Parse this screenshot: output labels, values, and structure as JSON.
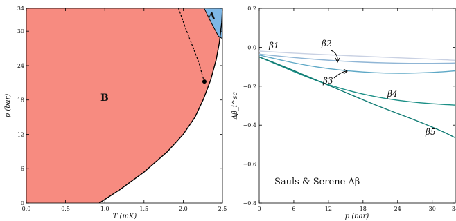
{
  "colors": {
    "phase_A": "#7eb7e6",
    "phase_B": "#f78b80",
    "beta1": "#c9d1e3",
    "beta2": "#8fb5d5",
    "beta3": "#5ea8c6",
    "beta4": "#1b8f86",
    "beta5": "#0e7a72"
  },
  "chart_data": [
    {
      "type": "area",
      "xlabel": "T (mK)",
      "ylabel": "p (bar)",
      "xlim": [
        0.0,
        2.5
      ],
      "ylim": [
        0,
        34
      ],
      "xticks": [
        "0.0",
        "0.5",
        "1.0",
        "1.5",
        "2.0",
        "2.5"
      ],
      "yticks": [
        "0",
        "6",
        "12",
        "18",
        "24",
        "30",
        "34"
      ],
      "regions": [
        {
          "label": "A",
          "color": "#7eb7e6"
        },
        {
          "label": "B",
          "color": "#f78b80"
        }
      ],
      "boundary_Tc": {
        "x": [
          0.93,
          1.2,
          1.5,
          1.8,
          2.0,
          2.15,
          2.26,
          2.35,
          2.42,
          2.46,
          2.49,
          2.5
        ],
        "y": [
          0,
          2.4,
          5.4,
          9.0,
          12.0,
          15.0,
          18.2,
          21.5,
          25.0,
          28.0,
          31.5,
          34
        ]
      },
      "boundary_AB": {
        "x": [
          2.27,
          2.36,
          2.45,
          2.5
        ],
        "y": [
          33.9,
          31.4,
          29.1,
          28.7
        ]
      },
      "metastable_dashed": {
        "x": [
          1.94,
          2.03,
          2.13,
          2.2,
          2.25,
          2.27
        ],
        "y": [
          34,
          30.5,
          27.0,
          24.5,
          22.0,
          21.2
        ]
      },
      "pcp_point": {
        "x": 2.27,
        "y": 21.2
      }
    },
    {
      "type": "line",
      "xlabel": "p (bar)",
      "ylabel": "Δβ_i^sc",
      "xlim": [
        0,
        34
      ],
      "ylim": [
        -0.8,
        0.2
      ],
      "xticks": [
        "0",
        "6",
        "12",
        "18",
        "24",
        "30",
        "34"
      ],
      "yticks": [
        "−0.8",
        "−0.6",
        "−0.4",
        "−0.2",
        "0.0",
        "0.2"
      ],
      "annotation": "Sauls & Serene Δβ",
      "x": [
        0,
        4,
        8,
        12,
        16,
        20,
        24,
        28,
        32,
        34
      ],
      "series": [
        {
          "name": "β1",
          "values": [
            -0.02,
            -0.027,
            -0.033,
            -0.039,
            -0.044,
            -0.049,
            -0.054,
            -0.059,
            -0.064,
            -0.067
          ]
        },
        {
          "name": "β2",
          "values": [
            -0.035,
            -0.048,
            -0.058,
            -0.067,
            -0.074,
            -0.079,
            -0.082,
            -0.083,
            -0.082,
            -0.081
          ]
        },
        {
          "name": "β3",
          "values": [
            -0.04,
            -0.068,
            -0.092,
            -0.11,
            -0.123,
            -0.131,
            -0.134,
            -0.132,
            -0.126,
            -0.121
          ]
        },
        {
          "name": "β4",
          "values": [
            -0.05,
            -0.1,
            -0.15,
            -0.193,
            -0.227,
            -0.254,
            -0.273,
            -0.286,
            -0.294,
            -0.297
          ]
        },
        {
          "name": "β5",
          "values": [
            -0.05,
            -0.095,
            -0.145,
            -0.195,
            -0.245,
            -0.295,
            -0.34,
            -0.385,
            -0.435,
            -0.465
          ]
        }
      ]
    }
  ]
}
